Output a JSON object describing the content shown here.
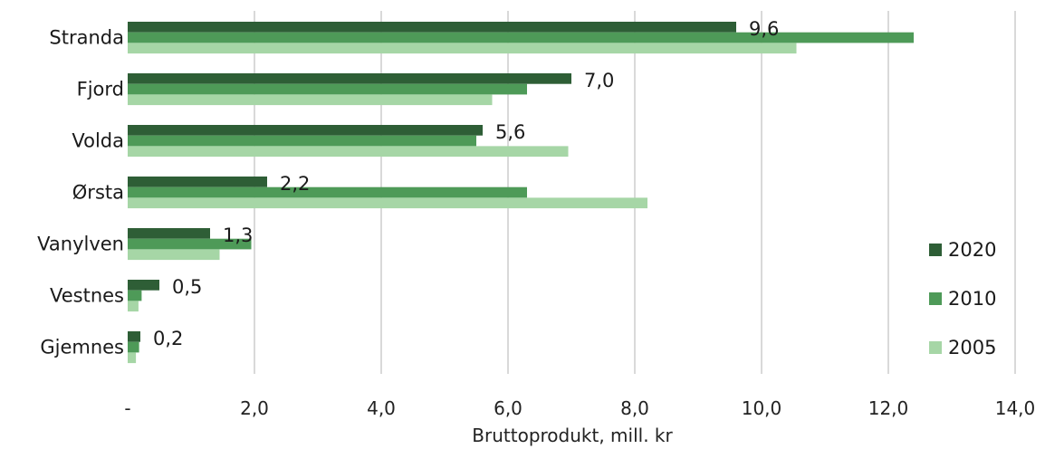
{
  "chart_data": {
    "type": "bar",
    "orientation": "horizontal",
    "categories": [
      "Stranda",
      "Fjord",
      "Volda",
      "Ørsta",
      "Vanylven",
      "Vestnes",
      "Gjemnes"
    ],
    "series": [
      {
        "name": "2020",
        "color": "#2e5e36",
        "values": [
          9.6,
          7.0,
          5.6,
          2.2,
          1.3,
          0.5,
          0.2
        ]
      },
      {
        "name": "2010",
        "color": "#4e9a58",
        "values": [
          12.4,
          6.3,
          5.5,
          6.3,
          1.95,
          0.22,
          0.18
        ]
      },
      {
        "name": "2005",
        "color": "#a6d6a6",
        "values": [
          10.55,
          5.75,
          6.95,
          8.2,
          1.45,
          0.17,
          0.13
        ]
      }
    ],
    "data_labels": {
      "series": "2020",
      "values": [
        "9,6",
        "7,0",
        "5,6",
        "2,2",
        "1,3",
        "0,5",
        "0,2"
      ]
    },
    "x_ticks": [
      {
        "value": 0,
        "label": "-"
      },
      {
        "value": 2,
        "label": "2,0"
      },
      {
        "value": 4,
        "label": "4,0"
      },
      {
        "value": 6,
        "label": "6,0"
      },
      {
        "value": 8,
        "label": "8,0"
      },
      {
        "value": 10,
        "label": "10,0"
      },
      {
        "value": 12,
        "label": "12,0"
      },
      {
        "value": 14,
        "label": "14,0"
      }
    ],
    "xlim": [
      0,
      14
    ],
    "xlabel": "Bruttoprodukt, mill. kr",
    "ylabel": "",
    "title": "",
    "grid": "vertical",
    "legend_position": "right"
  }
}
